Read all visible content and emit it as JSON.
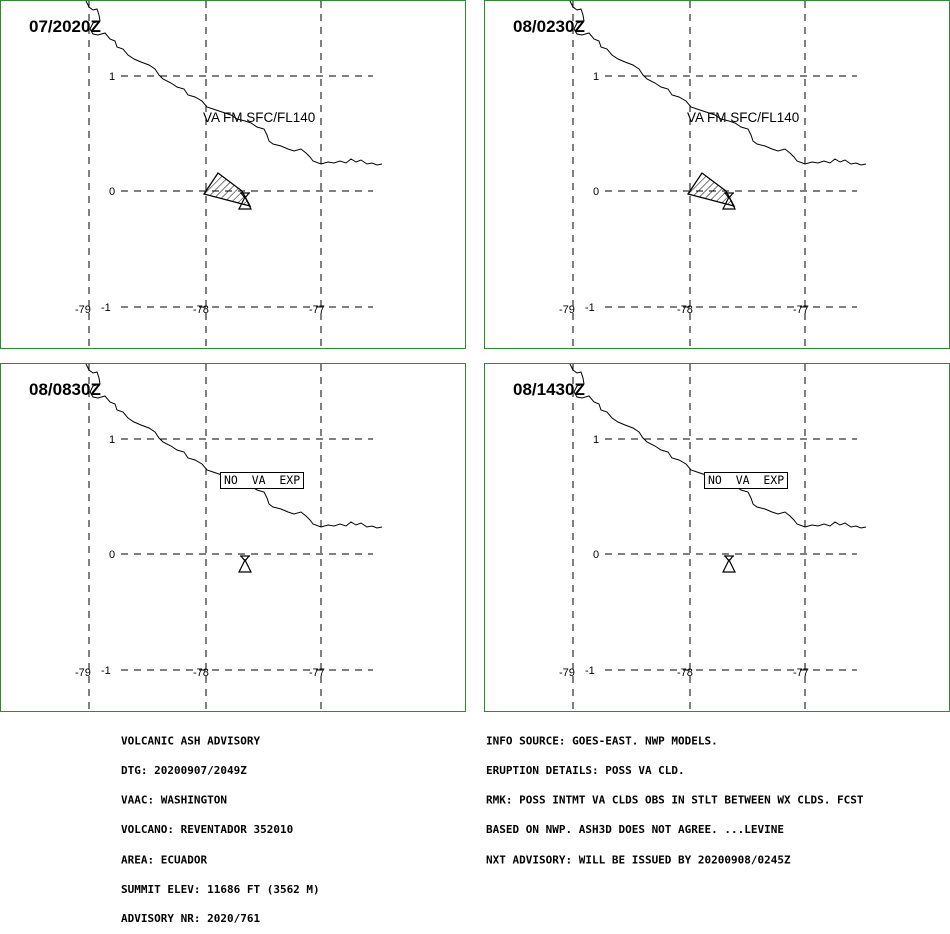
{
  "panels": [
    {
      "time": "07/2020Z",
      "label": "VA FM SFC/FL140",
      "box": false,
      "plume": true
    },
    {
      "time": "08/0230Z",
      "label": "VA FM SFC/FL140",
      "box": false,
      "plume": true
    },
    {
      "time": "08/0830Z",
      "label": "NO  VA  EXP",
      "box": true,
      "plume": false
    },
    {
      "time": "08/1430Z",
      "label": "NO  VA  EXP",
      "box": true,
      "plume": false
    }
  ],
  "lat_ticks": [
    "1",
    "0",
    "-1"
  ],
  "lon_ticks": [
    "-79",
    "-78",
    "-77"
  ],
  "advisory_left": [
    "VOLCANIC ASH ADVISORY",
    "DTG: 20200907/2049Z",
    "VAAC: WASHINGTON",
    "VOLCANO: REVENTADOR 352010",
    "AREA: ECUADOR",
    "SUMMIT ELEV: 11686 FT (3562 M)",
    "ADVISORY NR: 2020/761"
  ],
  "advisory_right": [
    "INFO SOURCE: GOES-EAST. NWP MODELS.",
    "ERUPTION DETAILS: POSS VA CLD.",
    "RMK: POSS INTMT VA CLDS OBS IN STLT BETWEEN WX CLDS. FCST",
    "BASED ON NWP. ASH3D DOES NOT AGREE. ...LEVINE",
    "NXT ADVISORY: WILL BE ISSUED BY 20200908/0245Z"
  ],
  "colors": {
    "panel_border": "#2e8b2e",
    "lines": "#000000",
    "background": "#ffffff"
  }
}
